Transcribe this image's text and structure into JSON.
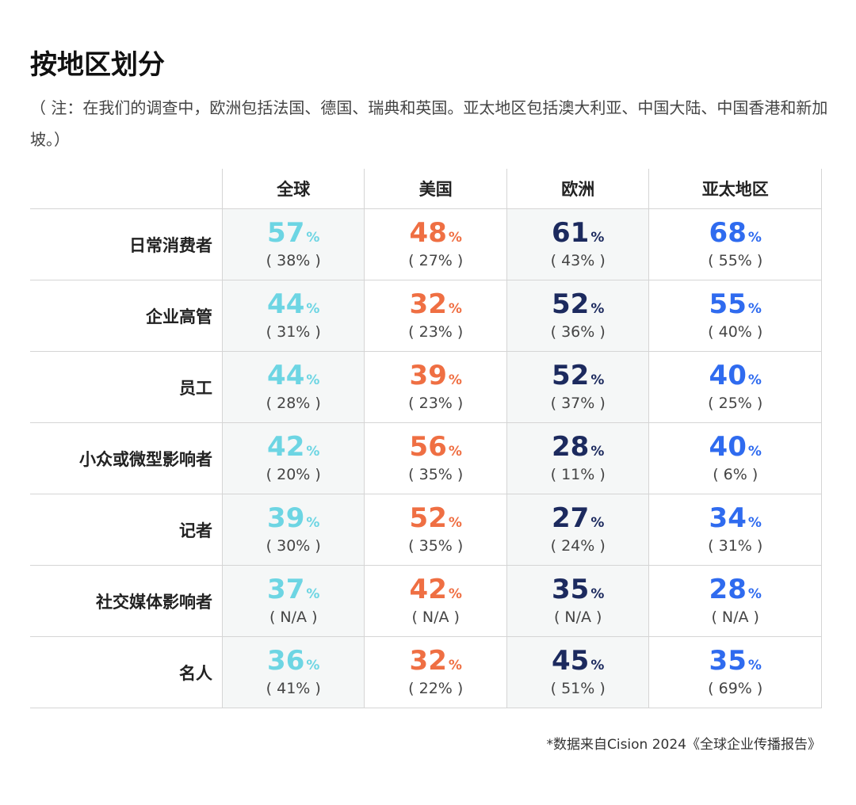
{
  "title": "按地区划分",
  "note": "（ 注：在我们的调查中，欧洲包括法国、德国、瑞典和英国。亚太地区包括澳大利亚、中国大陆、中国香港和新加坡。）",
  "source": "*数据来自Cision 2024《全球企业传播报告》",
  "colors": {
    "全球": "#6dd5e3",
    "美国": "#ef6f43",
    "欧洲": "#1c2a5e",
    "亚太地区": "#2f6bef",
    "shade": "#f5f7f7"
  },
  "chart_data": {
    "type": "table",
    "columns": [
      "全球",
      "美国",
      "欧洲",
      "亚太地区"
    ],
    "rows": [
      {
        "label": "日常消费者",
        "values": [
          "57",
          "48",
          "61",
          "68"
        ],
        "previous": [
          "( 38% )",
          "( 27% )",
          "( 43% )",
          "( 55% )"
        ]
      },
      {
        "label": "企业高管",
        "values": [
          "44",
          "32",
          "52",
          "55"
        ],
        "previous": [
          "( 31% )",
          "( 23% )",
          "( 36% )",
          "( 40% )"
        ]
      },
      {
        "label": "员工",
        "values": [
          "44",
          "39",
          "52",
          "40"
        ],
        "previous": [
          "( 28% )",
          "( 23% )",
          "( 37% )",
          "( 25% )"
        ]
      },
      {
        "label": "小众或微型影响者",
        "values": [
          "42",
          "56",
          "28",
          "40"
        ],
        "previous": [
          "( 20% )",
          "( 35% )",
          "( 11% )",
          "( 6% )"
        ]
      },
      {
        "label": "记者",
        "values": [
          "39",
          "52",
          "27",
          "34"
        ],
        "previous": [
          "( 30% )",
          "( 35% )",
          "( 24% )",
          "( 31% )"
        ]
      },
      {
        "label": "社交媒体影响者",
        "values": [
          "37",
          "42",
          "35",
          "28"
        ],
        "previous": [
          "( N/A )",
          "( N/A )",
          "( N/A )",
          "( N/A )"
        ]
      },
      {
        "label": "名人",
        "values": [
          "36",
          "32",
          "45",
          "35"
        ],
        "previous": [
          "( 41% )",
          "( 22% )",
          "( 51% )",
          "( 69% )"
        ]
      }
    ],
    "unit": "%"
  }
}
